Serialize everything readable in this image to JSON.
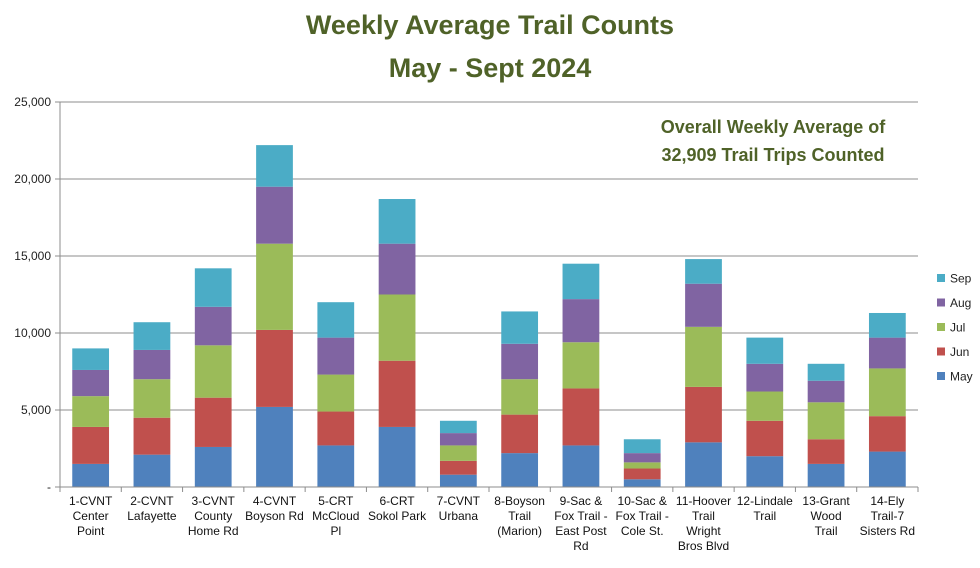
{
  "chart_data": {
    "type": "bar",
    "stacked": true,
    "title_lines": [
      "Weekly Average Trail Counts",
      "May - Sept 2024"
    ],
    "annotation_lines": [
      "Overall Weekly Average of",
      "32,909 Trail Trips Counted"
    ],
    "xlabel": "",
    "ylabel": "",
    "ylim": [
      0,
      25000
    ],
    "yticks": [
      0,
      5000,
      10000,
      15000,
      20000,
      25000
    ],
    "ytick_labels": [
      "-",
      "5,000",
      "10,000",
      "15,000",
      "20,000",
      "25,000"
    ],
    "grid": true,
    "legend_position": "right",
    "categories": [
      [
        "1-CVNT",
        "Center",
        "Point"
      ],
      [
        "2-CVNT",
        "Lafayette"
      ],
      [
        "3-CVNT",
        "County",
        "Home Rd"
      ],
      [
        "4-CVNT",
        "Boyson Rd"
      ],
      [
        "5-CRT",
        "McCloud",
        "Pl"
      ],
      [
        "6-CRT",
        "Sokol Park"
      ],
      [
        "7-CVNT",
        "Urbana"
      ],
      [
        "8-Boyson",
        "Trail",
        "(Marion)"
      ],
      [
        "9-Sac &",
        "Fox Trail -",
        "East Post",
        "Rd"
      ],
      [
        "10-Sac &",
        "Fox Trail -",
        "Cole St."
      ],
      [
        "11-Hoover",
        "Trail",
        "Wright",
        "Bros Blvd"
      ],
      [
        "12-Lindale",
        "Trail"
      ],
      [
        "13-Grant",
        "Wood",
        "Trail"
      ],
      [
        "14-Ely",
        "Trail-7",
        "Sisters Rd"
      ]
    ],
    "series": [
      {
        "name": "May",
        "color": "#4f81bd",
        "values": [
          1500,
          2100,
          2600,
          5200,
          2700,
          3900,
          800,
          2200,
          2700,
          500,
          2900,
          2000,
          1500,
          2300
        ]
      },
      {
        "name": "Jun",
        "color": "#c0504d",
        "values": [
          2400,
          2400,
          3200,
          5000,
          2200,
          4300,
          900,
          2500,
          3700,
          700,
          3600,
          2300,
          1600,
          2300
        ]
      },
      {
        "name": "Jul",
        "color": "#9bbb59",
        "values": [
          2000,
          2500,
          3400,
          5600,
          2400,
          4300,
          1000,
          2300,
          3000,
          400,
          3900,
          1900,
          2400,
          3100
        ]
      },
      {
        "name": "Aug",
        "color": "#8064a2",
        "values": [
          1700,
          1900,
          2500,
          3700,
          2400,
          3300,
          800,
          2300,
          2800,
          600,
          2800,
          1800,
          1400,
          2000
        ]
      },
      {
        "name": "Sep",
        "color": "#4bacc6",
        "values": [
          1400,
          1800,
          2500,
          2700,
          2300,
          2900,
          800,
          2100,
          2300,
          900,
          1600,
          1700,
          1100,
          1600
        ]
      }
    ],
    "legend_order": [
      "Sep",
      "Aug",
      "Jul",
      "Jun",
      "May"
    ]
  }
}
